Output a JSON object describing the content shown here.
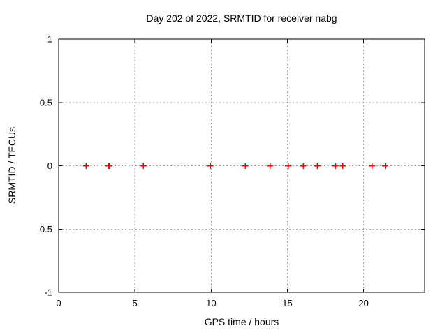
{
  "figure": {
    "title": "Day 202 of 2022, SRMTID for receiver nabg",
    "xlabel": "GPS time / hours",
    "ylabel": "SRMTID / TECUs"
  },
  "chart_data": {
    "type": "scatter",
    "title": "Day 202 of 2022, SRMTID for receiver nabg",
    "xlabel": "GPS time / hours",
    "ylabel": "SRMTID / TECUs",
    "xlim": [
      0,
      24
    ],
    "ylim": [
      -1,
      1
    ],
    "xticks": [
      0,
      5,
      10,
      15,
      20
    ],
    "xtick_labels": [
      "0",
      "5",
      "10",
      "15",
      "20"
    ],
    "yticks": [
      -1,
      -0.5,
      0,
      0.5,
      1
    ],
    "ytick_labels": [
      "-1",
      "-0.5",
      "0",
      "0.5",
      "1"
    ],
    "grid": true,
    "legend": "none",
    "marker": "plus",
    "marker_color": "#ff0000",
    "series": [
      {
        "name": "SRMTID",
        "x": [
          1.8,
          3.27,
          3.33,
          5.56,
          9.95,
          12.23,
          13.86,
          15.05,
          16.04,
          16.96,
          18.14,
          18.63,
          20.55,
          21.42
        ],
        "y": [
          0,
          0,
          0,
          0,
          0,
          0,
          0,
          0,
          0,
          0,
          0,
          0,
          0,
          0
        ]
      }
    ]
  },
  "colors": {
    "background": "#ffffff",
    "axis": "#000000",
    "grid": "#a6a6a6",
    "marker": "#ff0000"
  }
}
